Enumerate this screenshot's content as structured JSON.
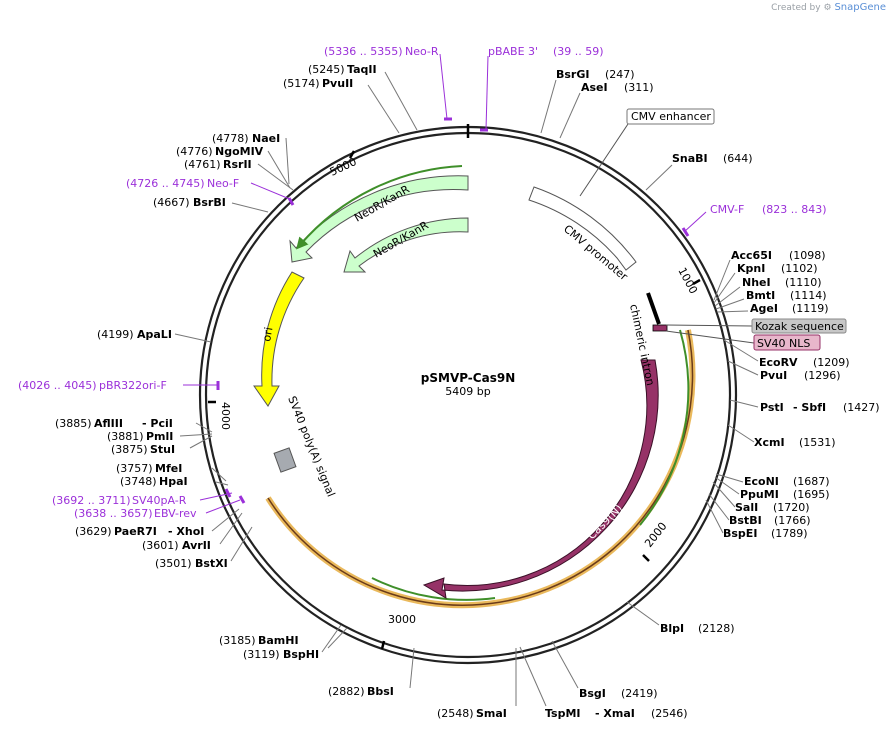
{
  "header": {
    "credit": "Created by",
    "brand": "SnapGene"
  },
  "plasmid": {
    "name": "pSMVP-Cas9N",
    "length_label": "5409 bp"
  },
  "ticks": [
    "1000",
    "2000",
    "3000",
    "4000",
    "5000"
  ],
  "features": {
    "cmv_enhancer": "CMV enhancer",
    "cmv_promoter": "CMV promoter",
    "chimeric_intron": "chimeric intron",
    "kozak": "Kozak sequence",
    "sv40_nls": "SV40 NLS",
    "cas9n": "Cas9(N)",
    "sv40_polya": "SV40 poly(A) signal",
    "ori": "ori",
    "neo1": "NeoR/KanR",
    "neo2": "NeoR/KanR"
  },
  "colors": {
    "backbone": "#222222",
    "cas9": "#963267",
    "ori": "#ffff00",
    "neo": "#ccffcc",
    "primer": "#9b30d9",
    "orf_outline": "#e8b14a",
    "orf_green": "#3f8f2a"
  },
  "sites": {
    "bsrgi": {
      "name": "BsrGI",
      "pos": "(247)"
    },
    "asei": {
      "name": "AseI",
      "pos": "(311)"
    },
    "snabi": {
      "name": "SnaBI",
      "pos": "(644)"
    },
    "acc65i": {
      "name": "Acc65I",
      "pos": "(1098)"
    },
    "kpni": {
      "name": "KpnI",
      "pos": "(1102)"
    },
    "nhei": {
      "name": "NheI",
      "pos": "(1110)"
    },
    "bmti": {
      "name": "BmtI",
      "pos": "(1114)"
    },
    "agei": {
      "name": "AgeI",
      "pos": "(1119)"
    },
    "ecorv": {
      "name": "EcoRV",
      "pos": "(1209)"
    },
    "pvui": {
      "name": "PvuI",
      "pos": "(1296)"
    },
    "psti": {
      "name": "PstI",
      "pos": "(1427)"
    },
    "sbfi": {
      "name": "- SbfI"
    },
    "xcmi": {
      "name": "XcmI",
      "pos": "(1531)"
    },
    "econi": {
      "name": "EcoNI",
      "pos": "(1687)"
    },
    "ppumi": {
      "name": "PpuMI",
      "pos": "(1695)"
    },
    "sali": {
      "name": "SalI",
      "pos": "(1720)"
    },
    "bstbi": {
      "name": "BstBI",
      "pos": "(1766)"
    },
    "bspei": {
      "name": "BspEI",
      "pos": "(1789)"
    },
    "blpi": {
      "name": "BlpI",
      "pos": "(2128)"
    },
    "bsgi": {
      "name": "BsgI",
      "pos": "(2419)"
    },
    "tspmi": {
      "name": "TspMI",
      "pos": "(2546)"
    },
    "xmai": {
      "name": "- XmaI"
    },
    "smai": {
      "name": "SmaI",
      "pos": "(2548)"
    },
    "bbsi": {
      "name": "BbsI",
      "pos": "(2882)"
    },
    "bsphi": {
      "name": "BspHI",
      "pos": "(3119)"
    },
    "bamhi": {
      "name": "BamHI",
      "pos": "(3185)"
    },
    "bstxi": {
      "name": "BstXI",
      "pos": "(3501)"
    },
    "avrii": {
      "name": "AvrII",
      "pos": "(3601)"
    },
    "paer7i": {
      "name": "PaeR7I",
      "pos": "(3629)"
    },
    "xhoi": {
      "name": "- XhoI"
    },
    "hpai": {
      "name": "HpaI",
      "pos": "(3748)"
    },
    "mfei": {
      "name": "MfeI",
      "pos": "(3757)"
    },
    "stui": {
      "name": "StuI",
      "pos": "(3875)"
    },
    "pmli": {
      "name": "PmlI",
      "pos": "(3881)"
    },
    "afliii": {
      "name": "AflIII",
      "pos": "(3885)"
    },
    "pcii": {
      "name": "- PciI"
    },
    "apali": {
      "name": "ApaLI",
      "pos": "(4199)"
    },
    "bsrbi": {
      "name": "BsrBI",
      "pos": "(4667)"
    },
    "rsrii": {
      "name": "RsrII",
      "pos": "(4761)"
    },
    "ngomiv": {
      "name": "NgoMIV",
      "pos": "(4776)"
    },
    "naei": {
      "name": "NaeI",
      "pos": "(4778)"
    },
    "pvuii": {
      "name": "PvuII",
      "pos": "(5174)"
    },
    "taqii": {
      "name": "TaqII",
      "pos": "(5245)"
    }
  },
  "primers": {
    "pbabe3": {
      "name": "pBABE 3'",
      "range": "(39 .. 59)"
    },
    "neor": {
      "range": "(5336 .. 5355)",
      "name": "Neo-R"
    },
    "cmvf": {
      "name": "CMV-F",
      "range": "(823 .. 843)"
    },
    "neof": {
      "range": "(4726 .. 4745)",
      "name": "Neo-F"
    },
    "pbr322": {
      "range": "(4026 .. 4045)",
      "name": "pBR322ori-F"
    },
    "sv40par": {
      "range": "(3692 .. 3711)",
      "name": "SV40pA-R"
    },
    "ebvrev": {
      "range": "(3638 .. 3657)",
      "name": "EBV-rev"
    }
  }
}
